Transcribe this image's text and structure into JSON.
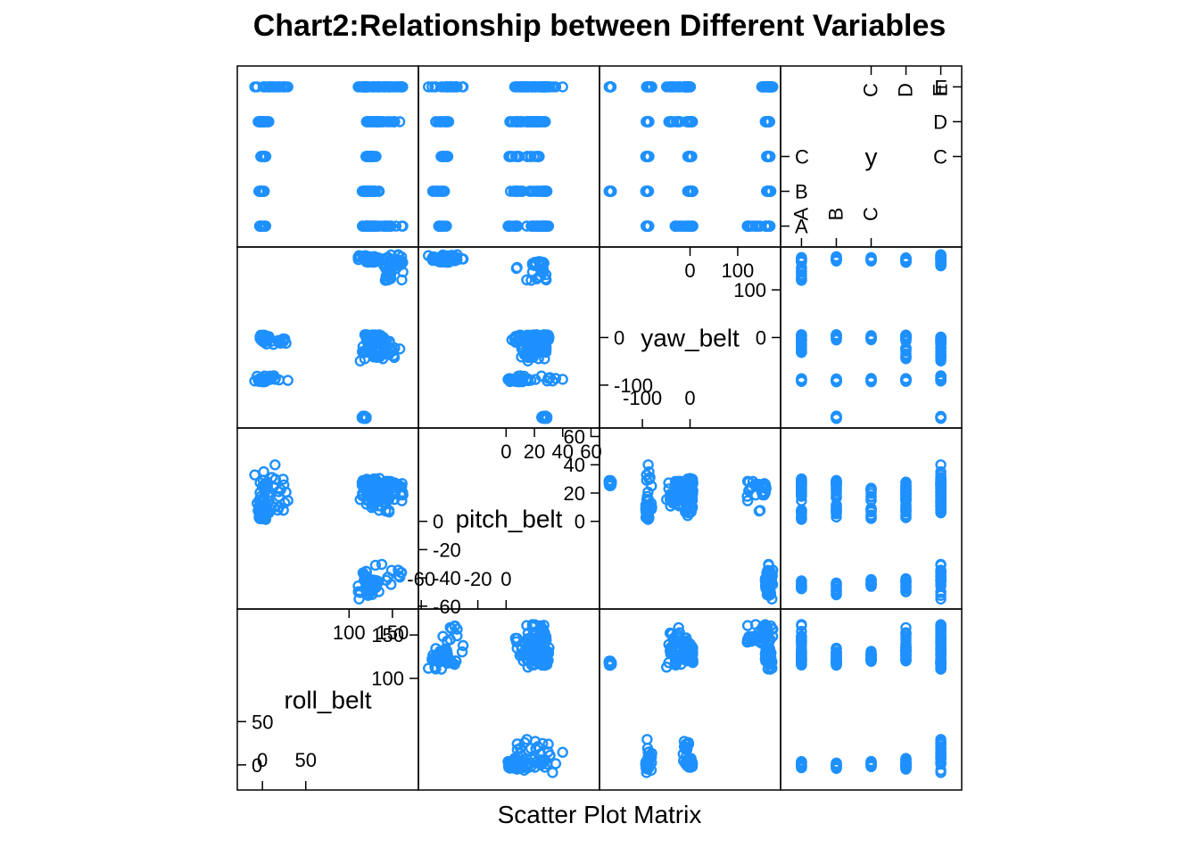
{
  "chart_data": {
    "type": "scatter",
    "title": "Chart2:Relationship between Different Variables",
    "xlabel": "Scatter Plot Matrix",
    "point_color": "#1e90ff",
    "marker": "open-circle",
    "grid": false,
    "variables": [
      {
        "name": "roll_belt",
        "label": "roll_belt",
        "kind": "numeric",
        "range": [
          -29,
          180
        ],
        "ticks_low": [
          0,
          50
        ],
        "ticks_low_labels": [
          "0",
          "50"
        ],
        "ticks_high": [
          100,
          150
        ],
        "ticks_high_labels": [
          "100",
          "150"
        ],
        "side_ticks_low": [
          0,
          50
        ],
        "side_ticks_low_labels": [
          "0",
          "50"
        ],
        "side_ticks_high": [
          100,
          150
        ],
        "side_ticks_high_labels": [
          "100",
          "150"
        ]
      },
      {
        "name": "pitch_belt",
        "label": "pitch_belt",
        "kind": "numeric",
        "range": [
          -62,
          66
        ],
        "ticks_low": [
          -60,
          -20,
          0
        ],
        "ticks_low_labels": [
          "-60",
          "-20",
          "0"
        ],
        "ticks_high": [
          0,
          20,
          40,
          60
        ],
        "ticks_high_labels": [
          "0",
          "20",
          "40",
          "60"
        ],
        "side_ticks_low": [
          -60,
          -40,
          -20,
          0
        ],
        "side_ticks_low_labels": [
          "-60",
          "-40",
          "-20",
          "0"
        ],
        "side_ticks_high": [
          0,
          20,
          40,
          60
        ],
        "side_ticks_high_labels": [
          "0",
          "20",
          "40",
          "60"
        ]
      },
      {
        "name": "yaw_belt",
        "label": "yaw_belt",
        "kind": "numeric",
        "range": [
          -190,
          190
        ],
        "ticks_low": [
          -100,
          0
        ],
        "ticks_low_labels": [
          "-100",
          "0"
        ],
        "ticks_high": [
          0,
          100
        ],
        "ticks_high_labels": [
          "0",
          "100"
        ],
        "side_ticks_low": [
          -100,
          0
        ],
        "side_ticks_low_labels": [
          "-100",
          "0"
        ],
        "side_ticks_high": [
          0,
          100
        ],
        "side_ticks_high_labels": [
          "0",
          "100"
        ]
      },
      {
        "name": "y",
        "label": "y",
        "kind": "categorical",
        "levels": [
          "A",
          "B",
          "C",
          "D",
          "E"
        ],
        "range": [
          0.4,
          5.6
        ],
        "ticks_low_labels": [
          "A",
          "B",
          "C"
        ],
        "ticks_high_labels": [
          "C",
          "D",
          "E"
        ],
        "side_ticks_low_labels": [
          "A",
          "B",
          "C"
        ],
        "side_ticks_high_labels": [
          "C",
          "D",
          "E"
        ]
      }
    ],
    "clusters": [
      {
        "class": "A",
        "roll": [
          -5,
          5
        ],
        "pitch": [
          0,
          8
        ],
        "yaw": [
          -93,
          -86
        ]
      },
      {
        "class": "B",
        "roll": [
          -5,
          5
        ],
        "pitch": [
          3,
          12
        ],
        "yaw": [
          -93,
          -86
        ]
      },
      {
        "class": "C",
        "roll": [
          -4,
          4
        ],
        "pitch": [
          2,
          10
        ],
        "yaw": [
          -93,
          -86
        ]
      },
      {
        "class": "D",
        "roll": [
          -5,
          5
        ],
        "pitch": [
          0,
          22
        ],
        "yaw": [
          -93,
          -86
        ]
      },
      {
        "class": "E",
        "roll": [
          -10,
          30
        ],
        "pitch": [
          -1,
          43
        ],
        "yaw": [
          -93,
          -80
        ]
      },
      {
        "class": "D",
        "roll": [
          -3,
          8
        ],
        "pitch": [
          -2,
          28
        ],
        "yaw": [
          -8,
          6
        ]
      },
      {
        "class": "E",
        "roll": [
          0,
          30
        ],
        "pitch": [
          5,
          30
        ],
        "yaw": [
          -15,
          0
        ]
      },
      {
        "class": "E",
        "roll": [
          110,
          125
        ],
        "pitch": [
          -55,
          -35
        ],
        "yaw": [
          162,
          172
        ]
      },
      {
        "class": "A",
        "roll": [
          118,
          130
        ],
        "pitch": [
          -48,
          -42
        ],
        "yaw": [
          158,
          168
        ]
      },
      {
        "class": "B",
        "roll": [
          120,
          132
        ],
        "pitch": [
          -52,
          -43
        ],
        "yaw": [
          160,
          170
        ]
      },
      {
        "class": "C",
        "roll": [
          118,
          128
        ],
        "pitch": [
          -46,
          -41
        ],
        "yaw": [
          160,
          168
        ]
      },
      {
        "class": "D",
        "roll": [
          120,
          135
        ],
        "pitch": [
          -50,
          -40
        ],
        "yaw": [
          158,
          170
        ]
      },
      {
        "class": "E",
        "roll": [
          125,
          165
        ],
        "pitch": [
          -30,
          -45
        ],
        "yaw": [
          160,
          175
        ]
      },
      {
        "class": "A",
        "roll": [
          118,
          132
        ],
        "pitch": [
          18,
          30
        ],
        "yaw": [
          -10,
          8
        ]
      },
      {
        "class": "B",
        "roll": [
          118,
          135
        ],
        "pitch": [
          15,
          28
        ],
        "yaw": [
          -8,
          6
        ]
      },
      {
        "class": "C",
        "roll": [
          120,
          132
        ],
        "pitch": [
          14,
          24
        ],
        "yaw": [
          -6,
          4
        ]
      },
      {
        "class": "D",
        "roll": [
          120,
          140
        ],
        "pitch": [
          12,
          26
        ],
        "yaw": [
          -5,
          5
        ]
      },
      {
        "class": "E",
        "roll": [
          118,
          150
        ],
        "pitch": [
          5,
          32
        ],
        "yaw": [
          -10,
          8
        ]
      },
      {
        "class": "A",
        "roll": [
          115,
          148
        ],
        "pitch": [
          18,
          32
        ],
        "yaw": [
          -32,
          -8
        ]
      },
      {
        "class": "E",
        "roll": [
          110,
          150
        ],
        "pitch": [
          10,
          30
        ],
        "yaw": [
          -50,
          -20
        ]
      },
      {
        "class": "D",
        "roll": [
          125,
          160
        ],
        "pitch": [
          15,
          28
        ],
        "yaw": [
          -45,
          -20
        ]
      },
      {
        "class": "E",
        "roll": [
          140,
          162
        ],
        "pitch": [
          18,
          27
        ],
        "yaw": [
          150,
          160
        ]
      },
      {
        "class": "B",
        "roll": [
          115,
          120
        ],
        "pitch": [
          25,
          29
        ],
        "yaw": [
          -170,
          -165
        ]
      },
      {
        "class": "E",
        "roll": [
          115,
          120
        ],
        "pitch": [
          25,
          29
        ],
        "yaw": [
          -170,
          -165
        ]
      },
      {
        "class": "A",
        "roll": [
          135,
          165
        ],
        "pitch": [
          5,
          30
        ],
        "yaw": [
          120,
          150
        ]
      }
    ]
  }
}
